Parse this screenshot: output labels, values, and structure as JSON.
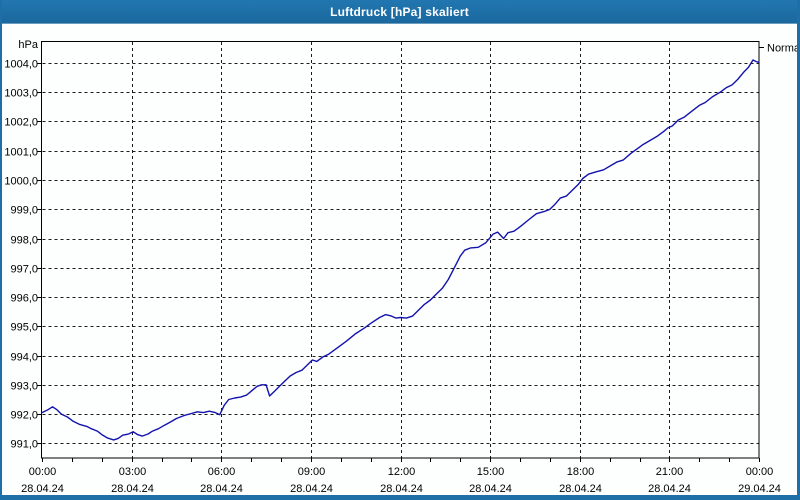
{
  "window": {
    "title": "Luftdruck [hPa] skaliert"
  },
  "colors": {
    "titlebar": "#1e6fa8",
    "window_border": "#1e6fa8",
    "chart_bg": "#ffffff",
    "plot_border": "#000000",
    "gridline": "#1a1a1a",
    "series": "#1313ad",
    "label_text": "#000000",
    "title_text": "#ffffff"
  },
  "chart_data": {
    "type": "line",
    "title": "Luftdruck [hPa] skaliert",
    "ylabel": "hPa",
    "right_axis_label": "Normal",
    "x_unit": "hours",
    "xlim": [
      0,
      24
    ],
    "ylim": [
      990.5,
      1004.75
    ],
    "grid": true,
    "x_minor_tick_every_hours": 1,
    "y_ticks": [
      {
        "value": 991,
        "label": "991,0"
      },
      {
        "value": 992,
        "label": "992,0"
      },
      {
        "value": 993,
        "label": "993,0"
      },
      {
        "value": 994,
        "label": "994,0"
      },
      {
        "value": 995,
        "label": "995,0"
      },
      {
        "value": 996,
        "label": "996,0"
      },
      {
        "value": 997,
        "label": "997,0"
      },
      {
        "value": 998,
        "label": "998,0"
      },
      {
        "value": 999,
        "label": "999,0"
      },
      {
        "value": 1000,
        "label": "1000,0"
      },
      {
        "value": 1001,
        "label": "1001,0"
      },
      {
        "value": 1002,
        "label": "1002,0"
      },
      {
        "value": 1003,
        "label": "1003,0"
      },
      {
        "value": 1004,
        "label": "1004,0"
      }
    ],
    "x_ticks": [
      {
        "hour": 0,
        "time": "00:00",
        "date": "28.04.24"
      },
      {
        "hour": 3,
        "time": "03:00",
        "date": "28.04.24"
      },
      {
        "hour": 6,
        "time": "06:00",
        "date": "28.04.24"
      },
      {
        "hour": 9,
        "time": "09:00",
        "date": "28.04.24"
      },
      {
        "hour": 12,
        "time": "12:00",
        "date": "28.04.24"
      },
      {
        "hour": 15,
        "time": "15:00",
        "date": "28.04.24"
      },
      {
        "hour": 18,
        "time": "18:00",
        "date": "28.04.24"
      },
      {
        "hour": 21,
        "time": "21:00",
        "date": "28.04.24"
      },
      {
        "hour": 24,
        "time": "00:00",
        "date": "29.04.24"
      }
    ],
    "series": [
      {
        "name": "Luftdruck",
        "color": "#1313ad",
        "points": [
          [
            0.0,
            992.05
          ],
          [
            0.2,
            992.15
          ],
          [
            0.35,
            992.25
          ],
          [
            0.5,
            992.15
          ],
          [
            0.65,
            992.0
          ],
          [
            0.85,
            991.9
          ],
          [
            1.05,
            991.75
          ],
          [
            1.25,
            991.65
          ],
          [
            1.5,
            991.58
          ],
          [
            1.65,
            991.5
          ],
          [
            1.85,
            991.42
          ],
          [
            2.0,
            991.3
          ],
          [
            2.2,
            991.18
          ],
          [
            2.4,
            991.12
          ],
          [
            2.55,
            991.17
          ],
          [
            2.7,
            991.28
          ],
          [
            2.9,
            991.32
          ],
          [
            3.05,
            991.4
          ],
          [
            3.2,
            991.3
          ],
          [
            3.35,
            991.25
          ],
          [
            3.55,
            991.32
          ],
          [
            3.7,
            991.42
          ],
          [
            3.9,
            991.5
          ],
          [
            4.1,
            991.62
          ],
          [
            4.3,
            991.73
          ],
          [
            4.5,
            991.85
          ],
          [
            4.75,
            991.95
          ],
          [
            5.0,
            992.02
          ],
          [
            5.2,
            992.08
          ],
          [
            5.4,
            992.05
          ],
          [
            5.6,
            992.1
          ],
          [
            5.8,
            992.05
          ],
          [
            5.95,
            991.98
          ],
          [
            6.1,
            992.3
          ],
          [
            6.25,
            992.5
          ],
          [
            6.45,
            992.55
          ],
          [
            6.65,
            992.58
          ],
          [
            6.85,
            992.65
          ],
          [
            7.0,
            992.78
          ],
          [
            7.2,
            992.95
          ],
          [
            7.35,
            993.0
          ],
          [
            7.5,
            993.0
          ],
          [
            7.62,
            992.62
          ],
          [
            7.8,
            992.8
          ],
          [
            7.95,
            992.95
          ],
          [
            8.1,
            993.1
          ],
          [
            8.3,
            993.3
          ],
          [
            8.5,
            993.42
          ],
          [
            8.7,
            993.5
          ],
          [
            8.9,
            993.7
          ],
          [
            9.05,
            993.85
          ],
          [
            9.2,
            993.8
          ],
          [
            9.4,
            993.95
          ],
          [
            9.6,
            994.05
          ],
          [
            9.8,
            994.2
          ],
          [
            10.0,
            994.35
          ],
          [
            10.2,
            994.5
          ],
          [
            10.5,
            994.75
          ],
          [
            10.8,
            994.95
          ],
          [
            11.0,
            995.1
          ],
          [
            11.3,
            995.3
          ],
          [
            11.5,
            995.4
          ],
          [
            11.7,
            995.35
          ],
          [
            11.85,
            995.28
          ],
          [
            12.0,
            995.3
          ],
          [
            12.2,
            995.28
          ],
          [
            12.4,
            995.35
          ],
          [
            12.6,
            995.55
          ],
          [
            12.8,
            995.75
          ],
          [
            13.0,
            995.9
          ],
          [
            13.2,
            996.1
          ],
          [
            13.4,
            996.3
          ],
          [
            13.6,
            996.6
          ],
          [
            13.8,
            997.0
          ],
          [
            14.0,
            997.4
          ],
          [
            14.15,
            997.6
          ],
          [
            14.35,
            997.68
          ],
          [
            14.6,
            997.7
          ],
          [
            14.85,
            997.85
          ],
          [
            15.1,
            998.15
          ],
          [
            15.25,
            998.22
          ],
          [
            15.45,
            998.0
          ],
          [
            15.6,
            998.2
          ],
          [
            15.8,
            998.25
          ],
          [
            16.0,
            998.4
          ],
          [
            16.3,
            998.65
          ],
          [
            16.55,
            998.85
          ],
          [
            16.8,
            998.92
          ],
          [
            17.0,
            999.0
          ],
          [
            17.15,
            999.15
          ],
          [
            17.35,
            999.38
          ],
          [
            17.55,
            999.45
          ],
          [
            17.75,
            999.65
          ],
          [
            17.95,
            999.85
          ],
          [
            18.1,
            1000.05
          ],
          [
            18.3,
            1000.2
          ],
          [
            18.55,
            1000.28
          ],
          [
            18.8,
            1000.35
          ],
          [
            19.05,
            1000.5
          ],
          [
            19.25,
            1000.62
          ],
          [
            19.45,
            1000.68
          ],
          [
            19.7,
            1000.9
          ],
          [
            19.9,
            1001.05
          ],
          [
            20.1,
            1001.2
          ],
          [
            20.35,
            1001.35
          ],
          [
            20.6,
            1001.5
          ],
          [
            20.8,
            1001.65
          ],
          [
            20.95,
            1001.78
          ],
          [
            21.1,
            1001.85
          ],
          [
            21.3,
            1002.05
          ],
          [
            21.5,
            1002.15
          ],
          [
            21.75,
            1002.35
          ],
          [
            22.0,
            1002.55
          ],
          [
            22.2,
            1002.65
          ],
          [
            22.45,
            1002.85
          ],
          [
            22.7,
            1003.0
          ],
          [
            22.9,
            1003.15
          ],
          [
            23.1,
            1003.25
          ],
          [
            23.3,
            1003.45
          ],
          [
            23.5,
            1003.7
          ],
          [
            23.65,
            1003.85
          ],
          [
            23.8,
            1004.1
          ],
          [
            23.9,
            1004.05
          ],
          [
            24.0,
            1004.02
          ]
        ]
      }
    ]
  }
}
